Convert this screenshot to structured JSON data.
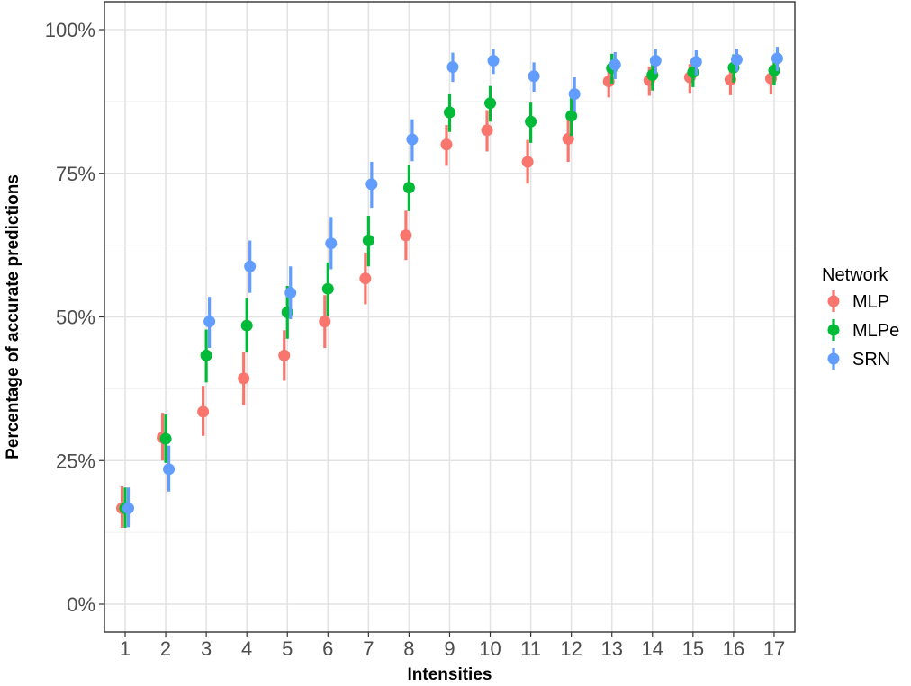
{
  "chart_data": {
    "type": "scatter",
    "title": "",
    "xlabel": "Intensities",
    "ylabel": "Percentage of accurate predictions",
    "x": [
      1,
      2,
      3,
      4,
      5,
      6,
      7,
      8,
      9,
      10,
      11,
      12,
      13,
      14,
      15,
      16,
      17
    ],
    "x_tick_labels": [
      "1",
      "2",
      "3",
      "4",
      "5",
      "6",
      "7",
      "8",
      "9",
      "10",
      "11",
      "12",
      "13",
      "14",
      "15",
      "16",
      "17"
    ],
    "ylim": [
      0,
      100
    ],
    "y_ticks": [
      0,
      25,
      50,
      75,
      100
    ],
    "y_tick_labels": [
      "0%",
      "25%",
      "50%",
      "75%",
      "100%"
    ],
    "grid": true,
    "legend": {
      "title": "Network",
      "position": "right"
    },
    "series": [
      {
        "name": "MLP",
        "color": "#F8766D",
        "values": [
          16.7,
          29.0,
          33.5,
          39.3,
          43.3,
          49.2,
          56.7,
          64.2,
          80.0,
          82.5,
          77.0,
          81.0,
          91.0,
          91.2,
          91.7,
          91.3,
          91.5
        ],
        "lower": [
          13.3,
          25.0,
          29.3,
          34.6,
          38.9,
          44.6,
          52.2,
          59.9,
          76.3,
          78.8,
          73.2,
          77.0,
          88.2,
          88.5,
          89.0,
          88.6,
          88.8
        ],
        "upper": [
          20.5,
          33.3,
          38.0,
          43.9,
          47.7,
          53.8,
          61.2,
          68.5,
          83.4,
          86.0,
          80.8,
          84.8,
          93.4,
          93.6,
          94.0,
          93.7,
          93.8
        ]
      },
      {
        "name": "MLPe",
        "color": "#00BA38",
        "values": [
          16.7,
          28.8,
          43.3,
          48.5,
          50.8,
          54.9,
          63.3,
          72.5,
          85.6,
          87.2,
          84.0,
          85.0,
          93.3,
          92.1,
          92.6,
          93.4,
          92.9
        ],
        "lower": [
          13.3,
          24.6,
          38.6,
          43.8,
          46.2,
          50.2,
          58.8,
          68.4,
          82.2,
          84.0,
          80.3,
          81.5,
          90.6,
          89.4,
          90.0,
          90.8,
          90.3
        ],
        "upper": [
          20.3,
          33.0,
          47.8,
          53.2,
          55.4,
          59.5,
          67.6,
          76.4,
          88.9,
          90.2,
          87.3,
          88.4,
          95.8,
          94.5,
          95.0,
          95.7,
          95.3
        ]
      },
      {
        "name": "SRN",
        "color": "#619CFF",
        "values": [
          16.7,
          23.5,
          49.2,
          58.8,
          54.2,
          62.8,
          73.1,
          80.9,
          93.5,
          94.6,
          91.9,
          88.8,
          93.9,
          94.6,
          94.4,
          94.8,
          95.0
        ],
        "lower": [
          13.4,
          19.6,
          44.6,
          54.2,
          49.6,
          58.3,
          69.0,
          77.1,
          90.9,
          92.3,
          89.2,
          85.7,
          91.4,
          92.3,
          92.1,
          92.7,
          92.8
        ],
        "upper": [
          20.3,
          27.6,
          53.5,
          63.3,
          58.8,
          67.4,
          77.0,
          84.4,
          96.0,
          96.6,
          94.3,
          91.7,
          96.1,
          96.6,
          96.4,
          96.7,
          97.0
        ]
      }
    ]
  }
}
